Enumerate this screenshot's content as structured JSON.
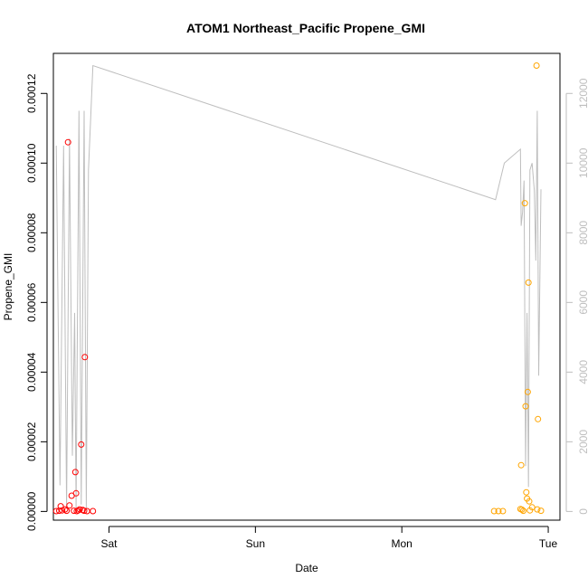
{
  "chart_data": {
    "type": "scatter",
    "title": "ATOM1 Northeast_Pacific Propene_GMI",
    "xlabel": "Date",
    "ylabel": "Propene_GMI",
    "x_ticks": [
      "Sat",
      "Sun",
      "Mon",
      "Tue"
    ],
    "x_unit": "days after Friday 00:00",
    "xlim": [
      0.62,
      4.08
    ],
    "ylim": [
      -2.5e-06,
      0.0001315
    ],
    "y_ticks": [
      "0.00000",
      "0.00002",
      "0.00004",
      "0.00006",
      "0.00008",
      "0.00010",
      "0.00012"
    ],
    "y_tick_values": [
      0,
      2e-05,
      4e-05,
      6e-05,
      8e-05,
      0.0001,
      0.00012
    ],
    "y2lim": [
      -250,
      13150
    ],
    "y2_ticks": [
      "0",
      "2000",
      "4000",
      "6000",
      "8000",
      "10000",
      "12000"
    ],
    "y2_tick_values": [
      0,
      2000,
      4000,
      6000,
      8000,
      10000,
      12000
    ],
    "colors": {
      "series1": "#ff0000",
      "series2": "#ffa500",
      "line": "#bebebe",
      "axis": "#000000"
    },
    "series": [
      {
        "color": "#ff0000",
        "points": [
          {
            "x": 0.64,
            "y": 1e-07
          },
          {
            "x": 0.66,
            "y": 2e-07
          },
          {
            "x": 0.67,
            "y": 1.5e-06
          },
          {
            "x": 0.68,
            "y": 3e-07
          },
          {
            "x": 0.7,
            "y": 6e-07
          },
          {
            "x": 0.71,
            "y": 2e-07
          },
          {
            "x": 0.72,
            "y": 0.000106
          },
          {
            "x": 0.73,
            "y": 1.7e-06
          },
          {
            "x": 0.745,
            "y": 4.5e-06
          },
          {
            "x": 0.76,
            "y": 2e-07
          },
          {
            "x": 0.77,
            "y": 1.13e-05
          },
          {
            "x": 0.775,
            "y": 5.2e-06
          },
          {
            "x": 0.78,
            "y": 1e-07
          },
          {
            "x": 0.79,
            "y": 3e-07
          },
          {
            "x": 0.8,
            "y": 6e-07
          },
          {
            "x": 0.81,
            "y": 1.92e-05
          },
          {
            "x": 0.82,
            "y": 4e-07
          },
          {
            "x": 0.83,
            "y": 2e-07
          },
          {
            "x": 0.835,
            "y": 4.43e-05
          },
          {
            "x": 0.85,
            "y": 1e-07
          },
          {
            "x": 0.89,
            "y": 1e-07
          }
        ]
      },
      {
        "color": "#ffa500",
        "points": [
          {
            "x": 3.63,
            "y": 1e-07
          },
          {
            "x": 3.66,
            "y": 1e-07
          },
          {
            "x": 3.69,
            "y": 1e-07
          },
          {
            "x": 3.81,
            "y": 7e-07
          },
          {
            "x": 3.815,
            "y": 1.33e-05
          },
          {
            "x": 3.82,
            "y": 5e-07
          },
          {
            "x": 3.83,
            "y": 2e-07
          },
          {
            "x": 3.84,
            "y": 8.85e-05
          },
          {
            "x": 3.845,
            "y": 3.02e-05
          },
          {
            "x": 3.85,
            "y": 5.5e-06
          },
          {
            "x": 3.855,
            "y": 3.7e-06
          },
          {
            "x": 3.86,
            "y": 3.43e-05
          },
          {
            "x": 3.865,
            "y": 6.57e-05
          },
          {
            "x": 3.87,
            "y": 2.9e-06
          },
          {
            "x": 3.875,
            "y": 3e-07
          },
          {
            "x": 3.89,
            "y": 1.2e-06
          },
          {
            "x": 3.92,
            "y": 0.000128
          },
          {
            "x": 3.925,
            "y": 6e-07
          },
          {
            "x": 3.93,
            "y": 2.65e-05
          },
          {
            "x": 3.95,
            "y": 2e-07
          }
        ]
      }
    ],
    "line_series": {
      "axis": "right",
      "points": [
        {
          "x": 0.64,
          "y": 10500
        },
        {
          "x": 0.665,
          "y": 750
        },
        {
          "x": 0.69,
          "y": 10500
        },
        {
          "x": 0.71,
          "y": 100
        },
        {
          "x": 0.73,
          "y": 10700
        },
        {
          "x": 0.75,
          "y": 1600
        },
        {
          "x": 0.765,
          "y": 5700
        },
        {
          "x": 0.775,
          "y": 100
        },
        {
          "x": 0.795,
          "y": 11500
        },
        {
          "x": 0.81,
          "y": 200
        },
        {
          "x": 0.83,
          "y": 11500
        },
        {
          "x": 0.845,
          "y": 100
        },
        {
          "x": 0.86,
          "y": 9800
        },
        {
          "x": 0.89,
          "y": 12800
        },
        {
          "x": 3.64,
          "y": 8950
        },
        {
          "x": 3.7,
          "y": 10000
        },
        {
          "x": 3.81,
          "y": 10400
        },
        {
          "x": 3.815,
          "y": 8200
        },
        {
          "x": 3.825,
          "y": 8600
        },
        {
          "x": 3.835,
          "y": 9500
        },
        {
          "x": 3.845,
          "y": 1300
        },
        {
          "x": 3.855,
          "y": 5700
        },
        {
          "x": 3.865,
          "y": 700
        },
        {
          "x": 3.875,
          "y": 9800
        },
        {
          "x": 3.89,
          "y": 10000
        },
        {
          "x": 3.905,
          "y": 9200
        },
        {
          "x": 3.915,
          "y": 7200
        },
        {
          "x": 3.925,
          "y": 11500
        },
        {
          "x": 3.935,
          "y": 3900
        },
        {
          "x": 3.95,
          "y": 9250
        }
      ]
    },
    "grid": false,
    "legend": "none"
  }
}
